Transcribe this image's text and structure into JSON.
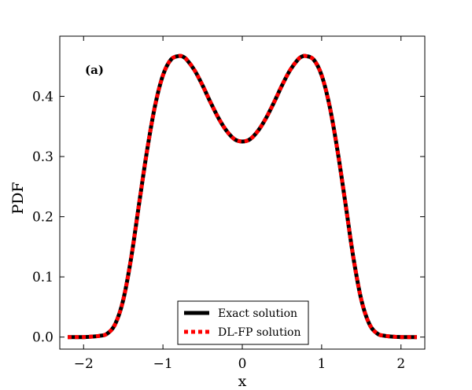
{
  "chart_data": {
    "type": "line",
    "panel_label": "(a)",
    "xlabel": "x",
    "ylabel": "PDF",
    "xlim": [
      -2.3,
      2.3
    ],
    "ylim": [
      -0.02,
      0.5
    ],
    "xticks": [
      -2,
      -1,
      0,
      1,
      2
    ],
    "xtick_labels": [
      "−2",
      "−1",
      "0",
      "1",
      "2"
    ],
    "yticks": [
      0.0,
      0.1,
      0.2,
      0.3,
      0.4
    ],
    "ytick_labels": [
      "0.0",
      "0.1",
      "0.2",
      "0.3",
      "0.4"
    ],
    "grid": false,
    "legend_position": "bottom-center",
    "x": [
      -2.2,
      -2.0,
      -1.8,
      -1.7,
      -1.6,
      -1.5,
      -1.4,
      -1.3,
      -1.2,
      -1.1,
      -1.0,
      -0.9,
      -0.8,
      -0.75,
      -0.7,
      -0.6,
      -0.5,
      -0.4,
      -0.3,
      -0.2,
      -0.1,
      0.0,
      0.1,
      0.2,
      0.3,
      0.4,
      0.5,
      0.6,
      0.7,
      0.75,
      0.8,
      0.9,
      1.0,
      1.1,
      1.2,
      1.3,
      1.4,
      1.5,
      1.6,
      1.7,
      1.8,
      2.0,
      2.2
    ],
    "series": [
      {
        "name": "Exact solution",
        "color": "#000000",
        "style": "solid",
        "values": [
          0.0,
          0.0,
          0.002,
          0.006,
          0.022,
          0.062,
          0.132,
          0.222,
          0.31,
          0.384,
          0.435,
          0.461,
          0.467,
          0.466,
          0.461,
          0.443,
          0.418,
          0.39,
          0.364,
          0.343,
          0.329,
          0.325,
          0.329,
          0.343,
          0.364,
          0.39,
          0.418,
          0.443,
          0.461,
          0.466,
          0.467,
          0.461,
          0.435,
          0.384,
          0.31,
          0.222,
          0.132,
          0.062,
          0.022,
          0.006,
          0.002,
          0.0,
          0.0
        ]
      },
      {
        "name": "DL-FP solution",
        "color": "#ff0000",
        "style": "dashed",
        "values": [
          0.0,
          0.0,
          0.002,
          0.006,
          0.022,
          0.062,
          0.132,
          0.222,
          0.31,
          0.384,
          0.435,
          0.461,
          0.467,
          0.466,
          0.461,
          0.443,
          0.418,
          0.39,
          0.364,
          0.343,
          0.329,
          0.325,
          0.329,
          0.343,
          0.364,
          0.39,
          0.418,
          0.443,
          0.461,
          0.466,
          0.467,
          0.461,
          0.435,
          0.384,
          0.31,
          0.222,
          0.132,
          0.062,
          0.022,
          0.006,
          0.002,
          0.0,
          0.0
        ]
      }
    ]
  }
}
